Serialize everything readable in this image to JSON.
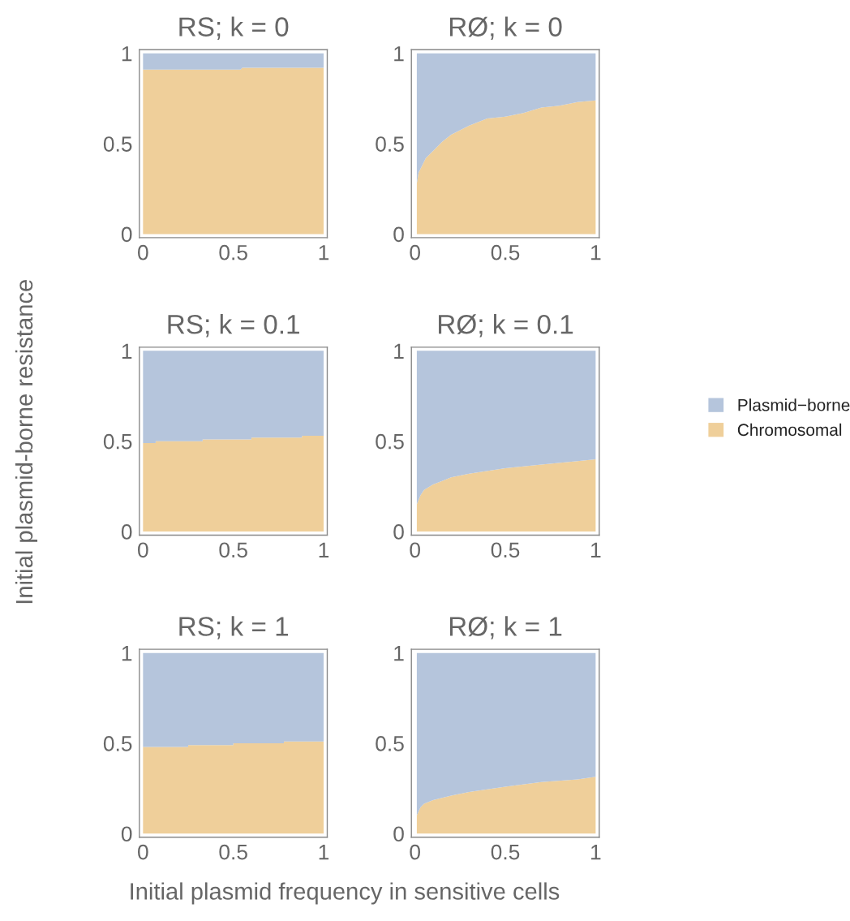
{
  "chart_data": [
    {
      "type": "area",
      "title": "RS; k = 0",
      "stacked": true,
      "x": [
        0,
        0.54,
        0.55,
        1
      ],
      "xlim": [
        -0.02,
        1.02
      ],
      "ylim": [
        -0.02,
        1.02
      ],
      "xticks": [
        0,
        0.5,
        1
      ],
      "yticks": [
        0,
        0.5,
        1
      ],
      "series": [
        {
          "color": "#efcf9a",
          "values": [
            0.91,
            0.91,
            0.92,
            0.92
          ]
        },
        {
          "color": "#b5c5dc",
          "values": [
            0.09,
            0.09,
            0.08,
            0.08
          ]
        }
      ]
    },
    {
      "type": "area",
      "title": "RØ; k = 0",
      "stacked": true,
      "x": [
        0.01,
        0.02,
        0.04,
        0.06,
        0.1,
        0.15,
        0.2,
        0.3,
        0.4,
        0.5,
        0.6,
        0.7,
        0.8,
        0.9,
        1
      ],
      "xlim": [
        -0.02,
        1.02
      ],
      "ylim": [
        -0.02,
        1.02
      ],
      "xticks": [
        0,
        0.5,
        1
      ],
      "yticks": [
        0,
        0.5,
        1
      ],
      "series": [
        {
          "color": "#efcf9a",
          "values": [
            0.28,
            0.34,
            0.38,
            0.42,
            0.46,
            0.51,
            0.55,
            0.6,
            0.64,
            0.65,
            0.67,
            0.7,
            0.71,
            0.73,
            0.74
          ]
        },
        {
          "color": "#b5c5dc",
          "values": [
            0.72,
            0.66,
            0.62,
            0.58,
            0.54,
            0.49,
            0.45,
            0.4,
            0.36,
            0.35,
            0.33,
            0.3,
            0.29,
            0.27,
            0.26
          ]
        }
      ]
    },
    {
      "type": "area",
      "title": "RS; k = 0.1",
      "ylabel": "Initial plasmid-borne resistance",
      "stacked": true,
      "x": [
        0,
        0.07,
        0.07,
        0.33,
        0.33,
        0.6,
        0.6,
        0.88,
        0.88,
        1
      ],
      "xlim": [
        -0.02,
        1.02
      ],
      "ylim": [
        -0.02,
        1.02
      ],
      "xticks": [
        0,
        0.5,
        1
      ],
      "yticks": [
        0,
        0.5,
        1
      ],
      "series": [
        {
          "color": "#efcf9a",
          "values": [
            0.49,
            0.49,
            0.5,
            0.5,
            0.51,
            0.51,
            0.52,
            0.52,
            0.53,
            0.53
          ]
        },
        {
          "color": "#b5c5dc",
          "values": [
            0.51,
            0.51,
            0.5,
            0.5,
            0.49,
            0.49,
            0.48,
            0.48,
            0.47,
            0.47
          ]
        }
      ]
    },
    {
      "type": "area",
      "title": "RØ; k = 0.1",
      "stacked": true,
      "legend": "right",
      "x": [
        0.01,
        0.03,
        0.05,
        0.1,
        0.15,
        0.2,
        0.3,
        0.5,
        0.7,
        0.9,
        1
      ],
      "xlim": [
        -0.02,
        1.02
      ],
      "ylim": [
        -0.02,
        1.02
      ],
      "xticks": [
        0,
        0.5,
        1
      ],
      "yticks": [
        0,
        0.5,
        1
      ],
      "series": [
        {
          "name": "Chromosomal",
          "color": "#efcf9a",
          "values": [
            0.15,
            0.2,
            0.23,
            0.26,
            0.28,
            0.3,
            0.32,
            0.35,
            0.37,
            0.39,
            0.4
          ]
        },
        {
          "name": "Plasmid−borne",
          "color": "#b5c5dc",
          "values": [
            0.85,
            0.8,
            0.77,
            0.74,
            0.72,
            0.7,
            0.68,
            0.65,
            0.63,
            0.61,
            0.6
          ]
        }
      ]
    },
    {
      "type": "area",
      "title": "RS; k = 1",
      "stacked": true,
      "x": [
        0,
        0.25,
        0.25,
        0.5,
        0.5,
        0.78,
        0.78,
        1
      ],
      "xlim": [
        -0.02,
        1.02
      ],
      "ylim": [
        -0.02,
        1.02
      ],
      "xticks": [
        0,
        0.5,
        1
      ],
      "yticks": [
        0,
        0.5,
        1
      ],
      "series": [
        {
          "color": "#efcf9a",
          "values": [
            0.48,
            0.48,
            0.49,
            0.49,
            0.5,
            0.5,
            0.51,
            0.51
          ]
        },
        {
          "color": "#b5c5dc",
          "values": [
            0.52,
            0.52,
            0.51,
            0.51,
            0.5,
            0.5,
            0.49,
            0.49
          ]
        }
      ]
    },
    {
      "type": "area",
      "title": "RØ; k = 1",
      "xlabel": "Initial plasmid frequency in sensitive cells",
      "stacked": true,
      "x": [
        0.01,
        0.03,
        0.05,
        0.1,
        0.2,
        0.3,
        0.5,
        0.7,
        0.9,
        1
      ],
      "xlim": [
        -0.02,
        1.02
      ],
      "ylim": [
        -0.02,
        1.02
      ],
      "xticks": [
        0,
        0.5,
        1
      ],
      "yticks": [
        0,
        0.5,
        1
      ],
      "series": [
        {
          "color": "#efcf9a",
          "values": [
            0.1,
            0.145,
            0.165,
            0.185,
            0.21,
            0.23,
            0.26,
            0.285,
            0.3,
            0.315
          ]
        },
        {
          "color": "#b5c5dc",
          "values": [
            0.9,
            0.855,
            0.835,
            0.815,
            0.79,
            0.77,
            0.74,
            0.715,
            0.7,
            0.685
          ]
        }
      ]
    }
  ]
}
